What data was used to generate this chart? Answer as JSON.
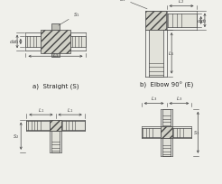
{
  "bg_color": "#f0f0eb",
  "line_color": "#444444",
  "hatch_color": "#999999",
  "dim_color": "#444444",
  "body_fill": "#e2e2da",
  "hatch_fill": "#d0d0c6",
  "dark_fill": "#c0c0b8",
  "labels": {
    "a": "a)  Straight (S)",
    "b": "b)  Elbow 90° (E)"
  },
  "text_fontsize": 5.0
}
